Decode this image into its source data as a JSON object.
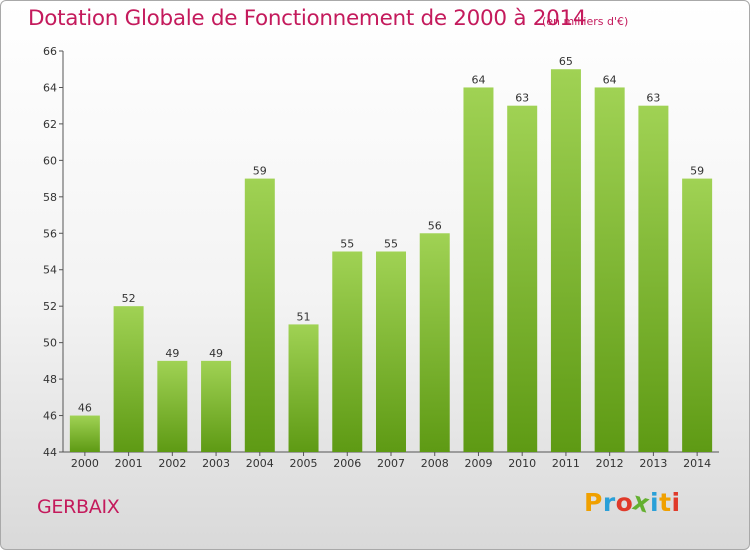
{
  "title": "Dotation Globale de Fonctionnement de 2000 à 2014",
  "unit_note": "(en milliers d'€)",
  "commune": "GERBAIX",
  "logo_text": "Proxiti",
  "colors": {
    "title": "#c41a5c",
    "bar_light": "#a0d254",
    "bar_dark": "#5e9a14",
    "logo": [
      "#f0a000",
      "#2aa0d8",
      "#e03a2a",
      "#64b030",
      "#2aa0d8",
      "#f0a000",
      "#e03a2a"
    ]
  },
  "chart_data": {
    "type": "bar",
    "title": "Dotation Globale de Fonctionnement de 2000 à 2014",
    "subtitle": "(en milliers d'€)",
    "categories": [
      "2000",
      "2001",
      "2002",
      "2003",
      "2004",
      "2005",
      "2006",
      "2007",
      "2008",
      "2009",
      "2010",
      "2011",
      "2012",
      "2013",
      "2014"
    ],
    "values": [
      46,
      52,
      49,
      49,
      59,
      51,
      55,
      55,
      56,
      64,
      63,
      65,
      64,
      63,
      59
    ],
    "ylim": [
      44,
      66
    ],
    "yticks": [
      44,
      46,
      48,
      50,
      52,
      54,
      56,
      58,
      60,
      62,
      64,
      66
    ],
    "grid": false,
    "legend": "none"
  }
}
